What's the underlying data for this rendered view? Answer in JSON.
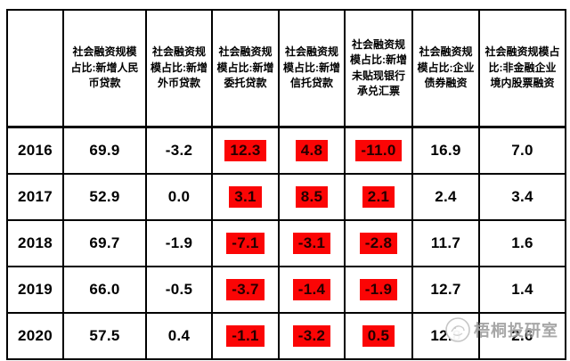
{
  "chart_data": {
    "type": "table",
    "title": "",
    "corner_label": "",
    "columns": [
      "",
      "社会融资规模占比:新增人民币贷款",
      "社会融资规模占比:新增外币贷款",
      "社会融资规模占比:新增委托贷款",
      "社会融资规模占比:新增信托贷款",
      "社会融资规模占比:新增未贴现银行承兑汇票",
      "社会融资规模占比:企业债券融资",
      "社会融资规模占比:非金融企业境内股票融资"
    ],
    "rows": [
      {
        "year": "2016",
        "cells": [
          {
            "text": "69.9",
            "highlight": false
          },
          {
            "text": "-3.2",
            "highlight": false
          },
          {
            "text": "12.3",
            "highlight": true
          },
          {
            "text": "4.8",
            "highlight": true
          },
          {
            "text": "-11.0",
            "highlight": true
          },
          {
            "text": "16.9",
            "highlight": false
          },
          {
            "text": "7.0",
            "highlight": false
          }
        ]
      },
      {
        "year": "2017",
        "cells": [
          {
            "text": "52.9",
            "highlight": false
          },
          {
            "text": "0.0",
            "highlight": false
          },
          {
            "text": "3.1",
            "highlight": true
          },
          {
            "text": "8.5",
            "highlight": true
          },
          {
            "text": "2.1",
            "highlight": true
          },
          {
            "text": "2.4",
            "highlight": false
          },
          {
            "text": "3.4",
            "highlight": false
          }
        ]
      },
      {
        "year": "2018",
        "cells": [
          {
            "text": "69.7",
            "highlight": false
          },
          {
            "text": "-1.9",
            "highlight": false
          },
          {
            "text": "-7.1",
            "highlight": true
          },
          {
            "text": "-3.1",
            "highlight": true
          },
          {
            "text": "-2.8",
            "highlight": true
          },
          {
            "text": "11.7",
            "highlight": false
          },
          {
            "text": "1.6",
            "highlight": false
          }
        ]
      },
      {
        "year": "2019",
        "cells": [
          {
            "text": "66.0",
            "highlight": false
          },
          {
            "text": "-0.5",
            "highlight": false
          },
          {
            "text": "-3.7",
            "highlight": true
          },
          {
            "text": "-1.4",
            "highlight": true
          },
          {
            "text": "-1.9",
            "highlight": true
          },
          {
            "text": "12.7",
            "highlight": false
          },
          {
            "text": "1.4",
            "highlight": false
          }
        ]
      },
      {
        "year": "2020",
        "cells": [
          {
            "text": "57.5",
            "highlight": false
          },
          {
            "text": "0.4",
            "highlight": false
          },
          {
            "text": "-1.1",
            "highlight": true
          },
          {
            "text": "-3.2",
            "highlight": true
          },
          {
            "text": "0.5",
            "highlight": true
          },
          {
            "text": "12.8",
            "highlight": false
          },
          {
            "text": "2.6",
            "highlight": false
          }
        ]
      }
    ],
    "layout": {
      "grid": true,
      "header_row_tall": true,
      "unit": "percent"
    }
  },
  "watermark": {
    "text": "梧桐投研室",
    "logo_icon": "wutong-logo-icon"
  },
  "colors": {
    "highlight_bg": "#fb0505",
    "highlight_text": "#230000",
    "border": "#000000",
    "background": "#ffffff",
    "watermark_text": "#949494"
  }
}
